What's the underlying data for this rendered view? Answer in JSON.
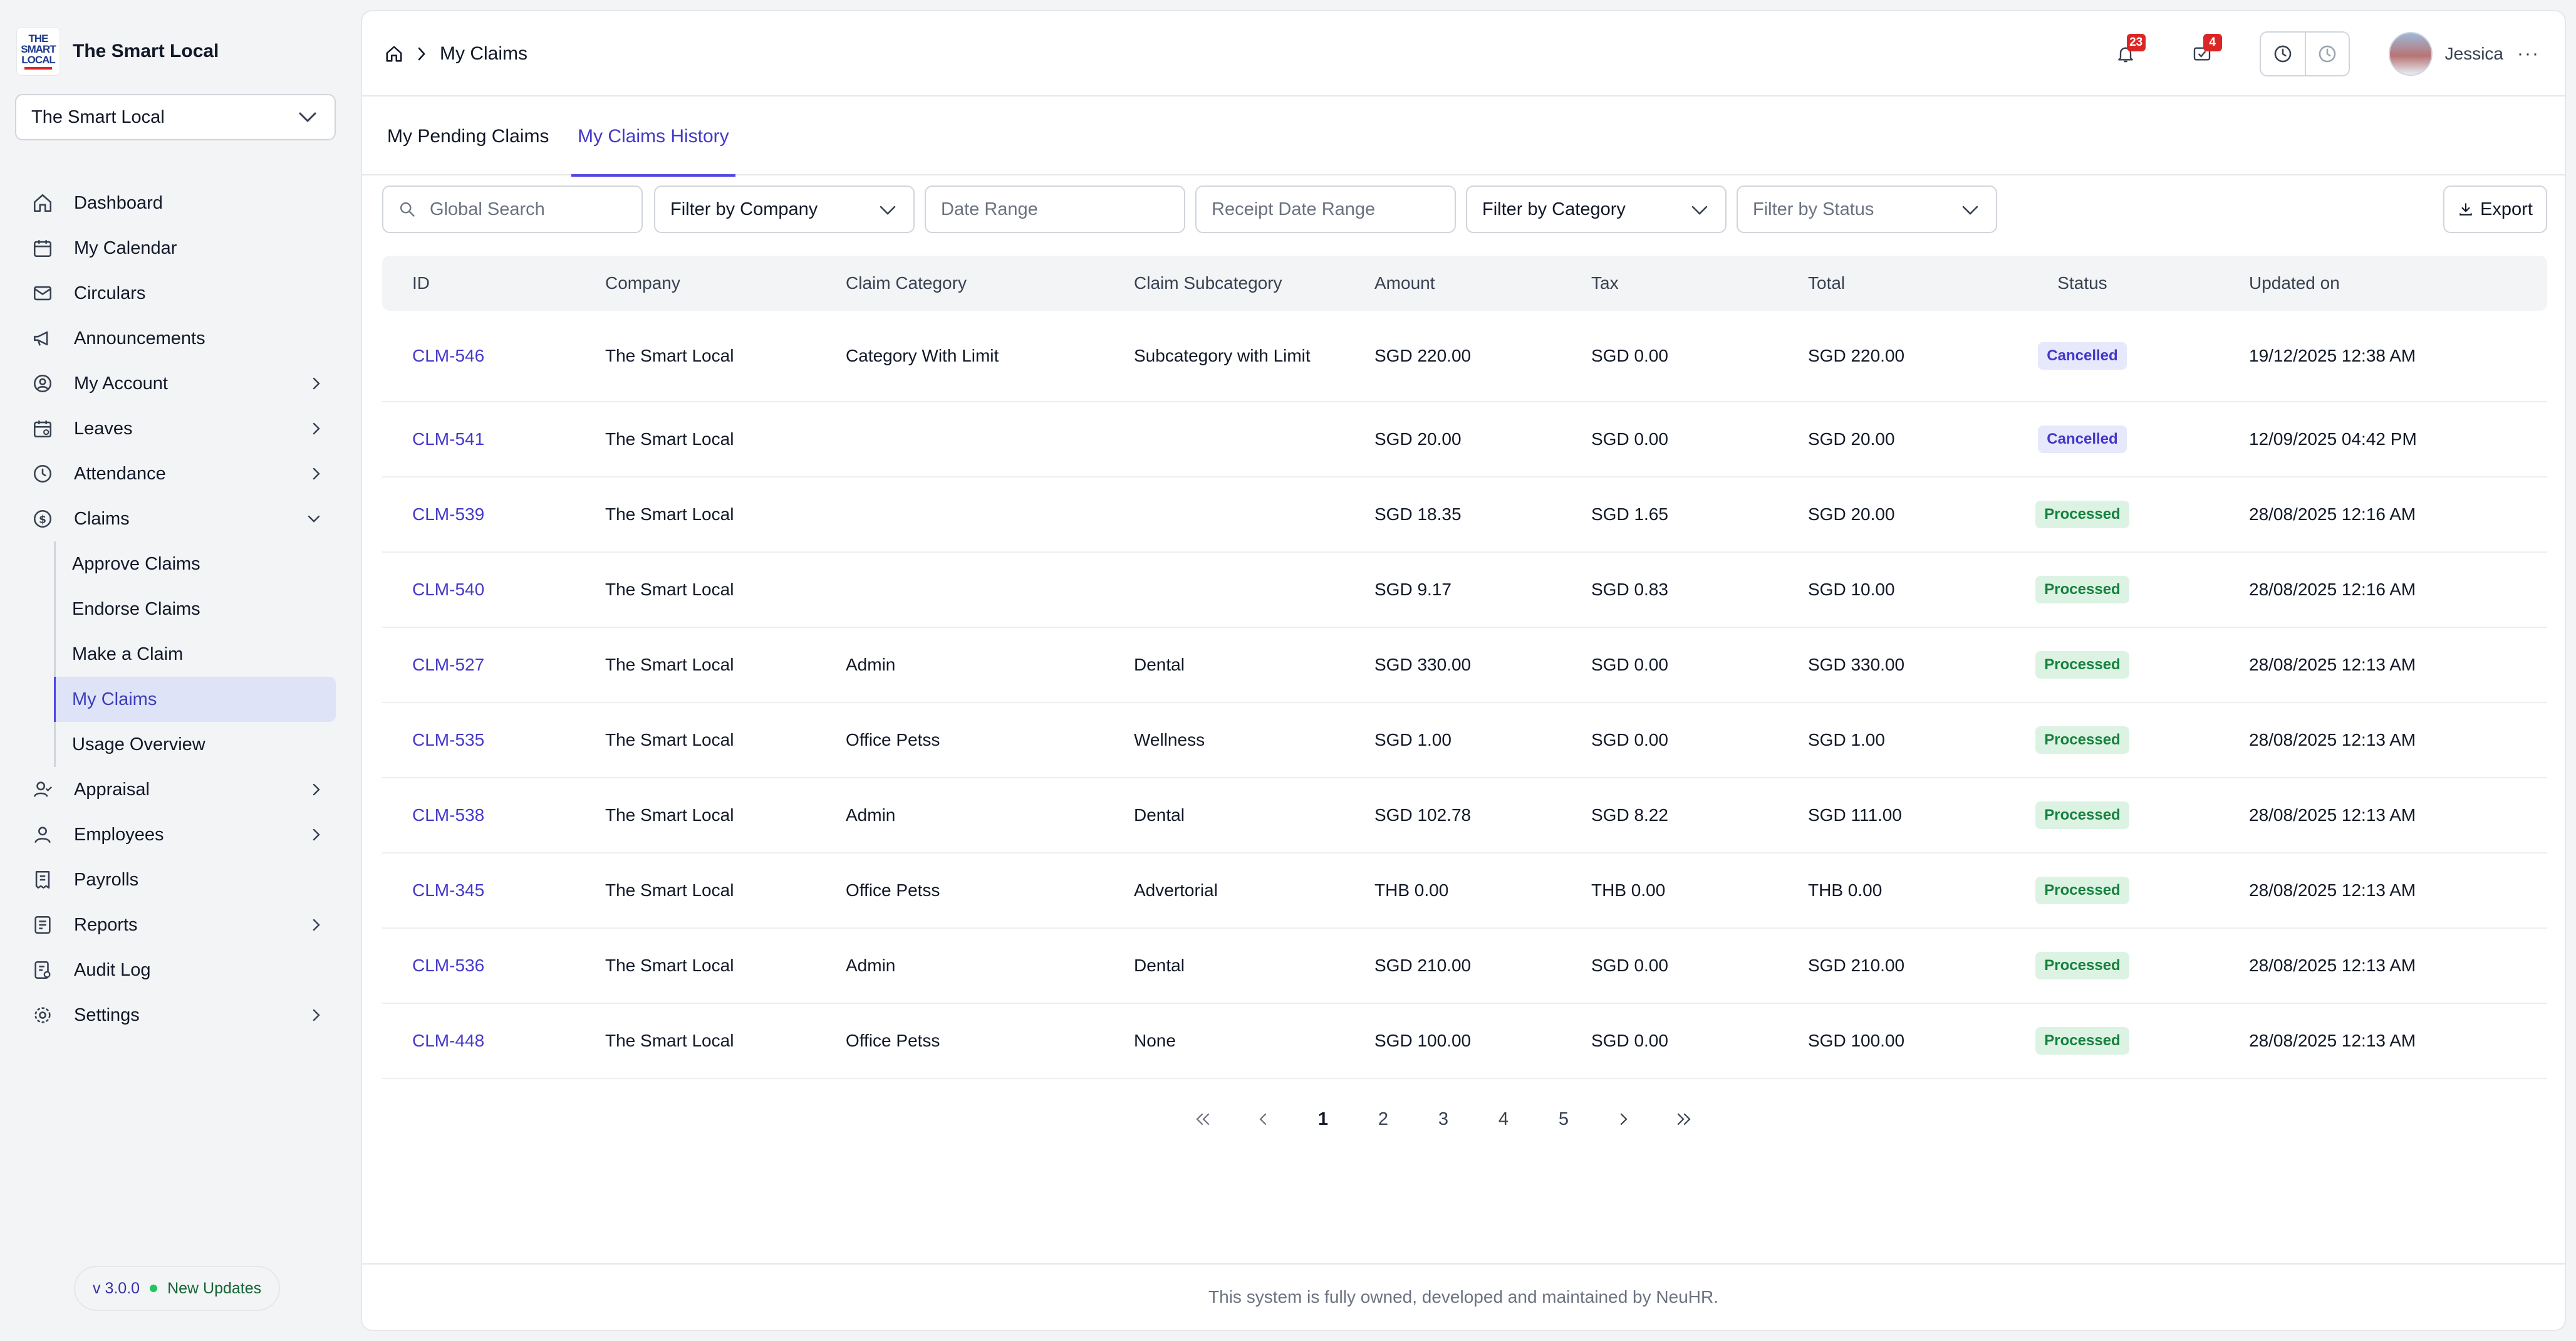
{
  "brand": {
    "logo_text": [
      "THE",
      "SMART",
      "LOCAL"
    ],
    "name": "The Smart Local"
  },
  "company_select": {
    "value": "The Smart Local"
  },
  "nav": {
    "items": [
      {
        "label": "Dashboard",
        "icon": "home-icon",
        "chevron": false
      },
      {
        "label": "My Calendar",
        "icon": "calendar-icon",
        "chevron": false
      },
      {
        "label": "Circulars",
        "icon": "mail-icon",
        "chevron": false
      },
      {
        "label": "Announcements",
        "icon": "megaphone-icon",
        "chevron": false
      },
      {
        "label": "My Account",
        "icon": "user-circle-icon",
        "chevron": true
      },
      {
        "label": "Leaves",
        "icon": "calendar-leave-icon",
        "chevron": true
      },
      {
        "label": "Attendance",
        "icon": "clock-icon",
        "chevron": true
      },
      {
        "label": "Claims",
        "icon": "dollar-circle-icon",
        "chevron": "down"
      }
    ],
    "claims_sub": [
      "Approve Claims",
      "Endorse Claims",
      "Make a Claim",
      "My Claims",
      "Usage Overview"
    ],
    "items_after": [
      {
        "label": "Appraisal",
        "icon": "user-check-icon",
        "chevron": true
      },
      {
        "label": "Employees",
        "icon": "user-icon",
        "chevron": true
      },
      {
        "label": "Payrolls",
        "icon": "receipt-icon",
        "chevron": false
      },
      {
        "label": "Reports",
        "icon": "report-icon",
        "chevron": true
      },
      {
        "label": "Audit Log",
        "icon": "audit-icon",
        "chevron": false
      },
      {
        "label": "Settings",
        "icon": "gear-icon",
        "chevron": true
      }
    ]
  },
  "version": {
    "version": "v 3.0.0",
    "updates": "New Updates"
  },
  "breadcrumb": {
    "current": "My Claims"
  },
  "header": {
    "notifications_count": "23",
    "tasks_count": "4",
    "user_name": "Jessica",
    "more": "···"
  },
  "tabs": {
    "pending": "My Pending Claims",
    "history": "My Claims History"
  },
  "filters": {
    "search_placeholder": "Global Search",
    "company": "Filter by Company",
    "date_range": "Date Range",
    "receipt_date_range": "Receipt Date Range",
    "category": "Filter by Category",
    "status": "Filter by Status",
    "export": "Export"
  },
  "table": {
    "columns": {
      "id": "ID",
      "company": "Company",
      "category": "Claim Category",
      "subcategory": "Claim Subcategory",
      "amount": "Amount",
      "tax": "Tax",
      "total": "Total",
      "status": "Status",
      "updated": "Updated on"
    },
    "rows": [
      {
        "id": "CLM-546",
        "company": "The Smart Local",
        "category": "Category With Limit",
        "subcategory": "Subcategory with Limit",
        "amount": "SGD 220.00",
        "tax": "SGD 0.00",
        "total": "SGD 220.00",
        "status": "Cancelled",
        "updated": "19/12/2025 12:38 AM"
      },
      {
        "id": "CLM-541",
        "company": "The Smart Local",
        "category": "",
        "subcategory": "",
        "amount": "SGD 20.00",
        "tax": "SGD 0.00",
        "total": "SGD 20.00",
        "status": "Cancelled",
        "updated": "12/09/2025 04:42 PM"
      },
      {
        "id": "CLM-539",
        "company": "The Smart Local",
        "category": "",
        "subcategory": "",
        "amount": "SGD 18.35",
        "tax": "SGD 1.65",
        "total": "SGD 20.00",
        "status": "Processed",
        "updated": "28/08/2025 12:16 AM"
      },
      {
        "id": "CLM-540",
        "company": "The Smart Local",
        "category": "",
        "subcategory": "",
        "amount": "SGD 9.17",
        "tax": "SGD 0.83",
        "total": "SGD 10.00",
        "status": "Processed",
        "updated": "28/08/2025 12:16 AM"
      },
      {
        "id": "CLM-527",
        "company": "The Smart Local",
        "category": "Admin",
        "subcategory": "Dental",
        "amount": "SGD 330.00",
        "tax": "SGD 0.00",
        "total": "SGD 330.00",
        "status": "Processed",
        "updated": "28/08/2025 12:13 AM"
      },
      {
        "id": "CLM-535",
        "company": "The Smart Local",
        "category": "Office Petss",
        "subcategory": "Wellness",
        "amount": "SGD 1.00",
        "tax": "SGD 0.00",
        "total": "SGD 1.00",
        "status": "Processed",
        "updated": "28/08/2025 12:13 AM"
      },
      {
        "id": "CLM-538",
        "company": "The Smart Local",
        "category": "Admin",
        "subcategory": "Dental",
        "amount": "SGD 102.78",
        "tax": "SGD 8.22",
        "total": "SGD 111.00",
        "status": "Processed",
        "updated": "28/08/2025 12:13 AM"
      },
      {
        "id": "CLM-345",
        "company": "The Smart Local",
        "category": "Office Petss",
        "subcategory": "Advertorial",
        "amount": "THB 0.00",
        "tax": "THB 0.00",
        "total": "THB 0.00",
        "status": "Processed",
        "updated": "28/08/2025 12:13 AM"
      },
      {
        "id": "CLM-536",
        "company": "The Smart Local",
        "category": "Admin",
        "subcategory": "Dental",
        "amount": "SGD 210.00",
        "tax": "SGD 0.00",
        "total": "SGD 210.00",
        "status": "Processed",
        "updated": "28/08/2025 12:13 AM"
      },
      {
        "id": "CLM-448",
        "company": "The Smart Local",
        "category": "Office Petss",
        "subcategory": "None",
        "amount": "SGD 100.00",
        "tax": "SGD 0.00",
        "total": "SGD 100.00",
        "status": "Processed",
        "updated": "28/08/2025 12:13 AM"
      }
    ]
  },
  "pagination": {
    "first": "«",
    "prev": "‹",
    "pages": [
      "1",
      "2",
      "3",
      "4",
      "5"
    ],
    "current": "1",
    "next": "›",
    "last": "»"
  },
  "footer": {
    "text": "This system is fully owned, developed and maintained by NeuHR."
  },
  "colors": {
    "accent": "#4f46e5",
    "processed": "#15803d",
    "cancelled": "#4338ca",
    "badge": "#dc2626"
  }
}
